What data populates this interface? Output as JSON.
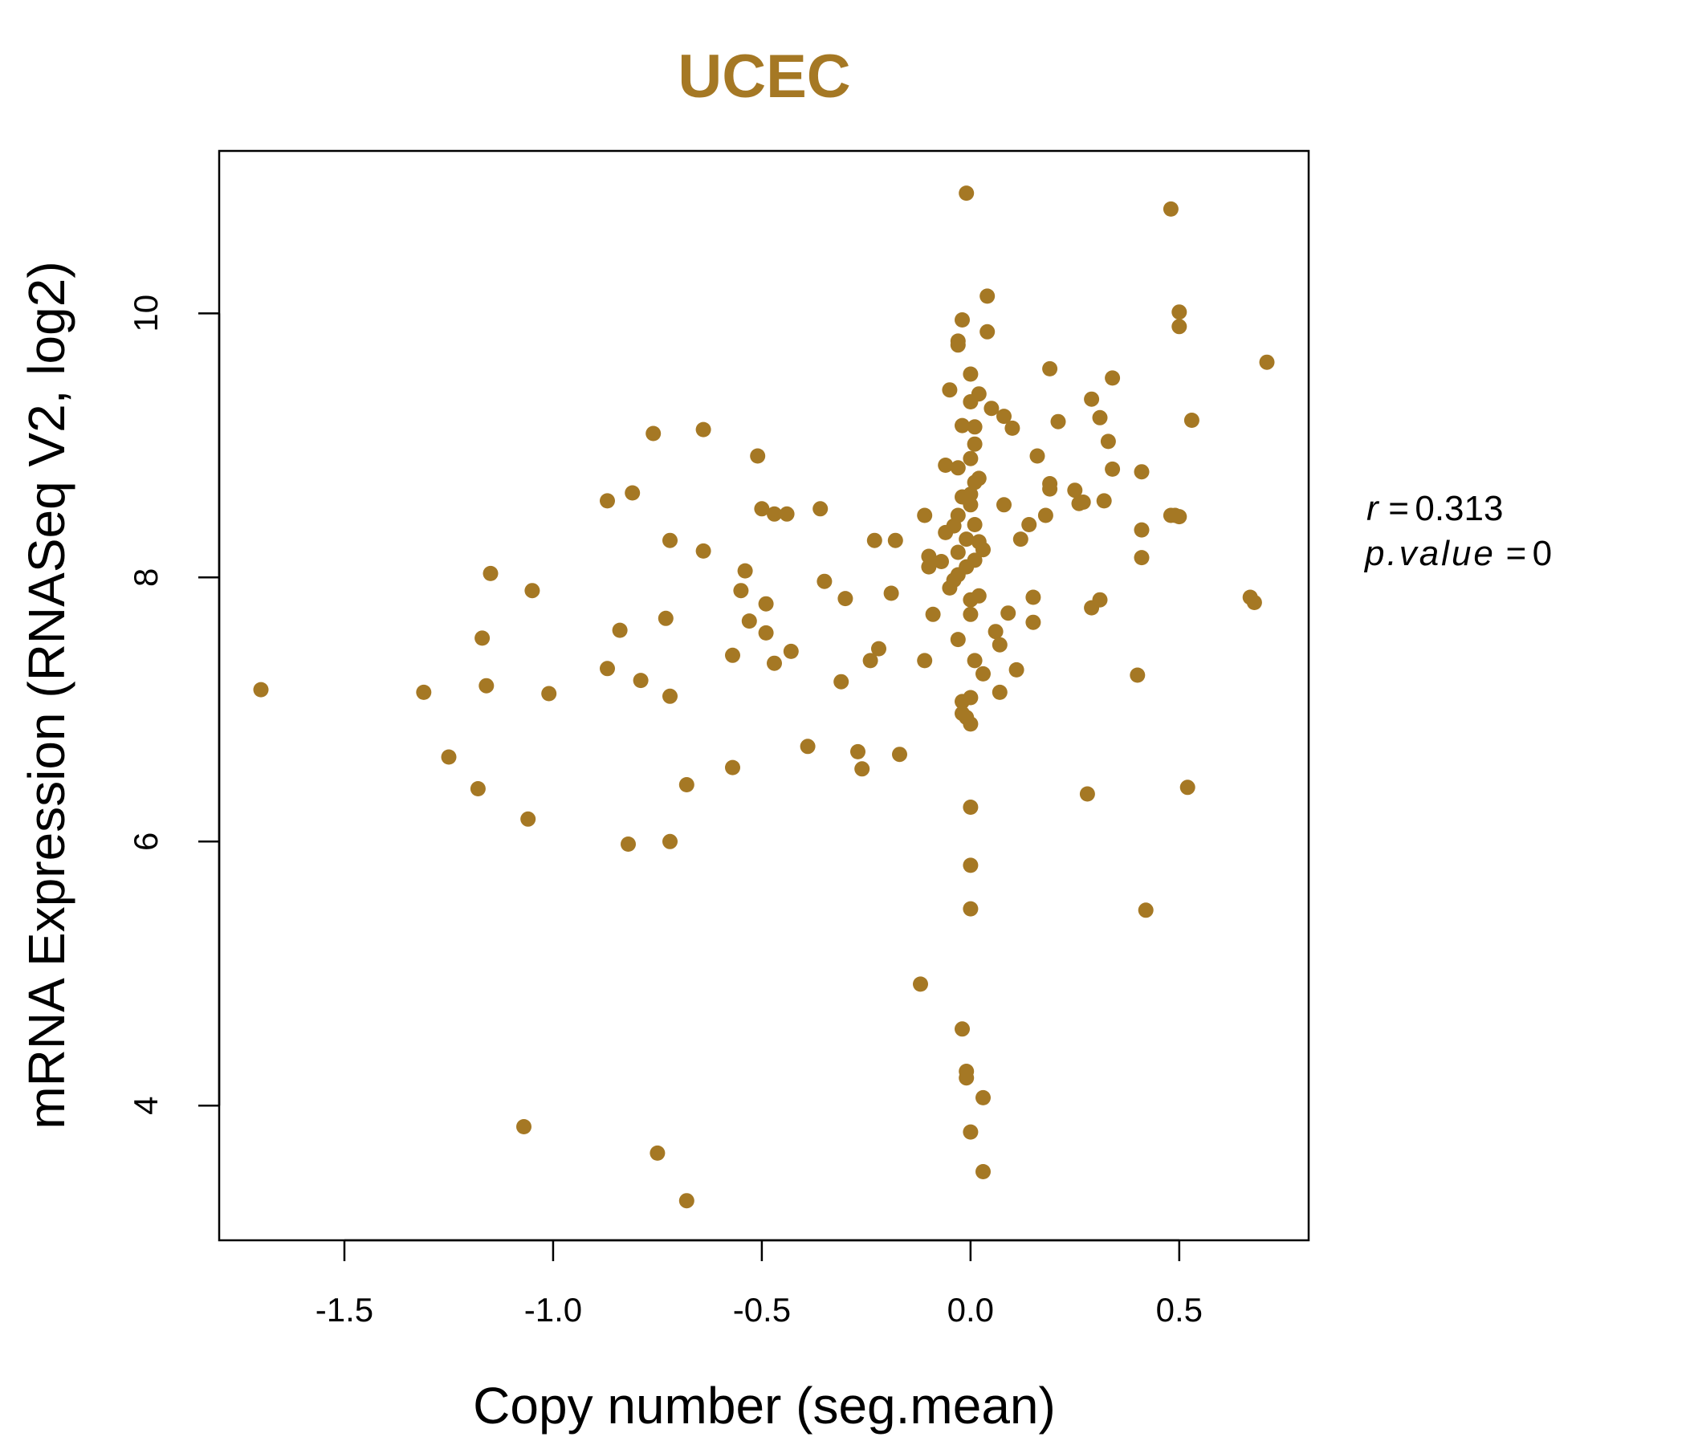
{
  "colors": {
    "point": "#a57824",
    "title": "#a57824",
    "axis": "#000000"
  },
  "chart_data": {
    "type": "scatter",
    "title": "UCEC",
    "xlabel": "Copy number (seg.mean)",
    "ylabel": "mRNA Expression (RNASeq V2, log2)",
    "xlim": [
      -1.8,
      0.81
    ],
    "ylim": [
      2.98,
      11.23
    ],
    "xticks": [
      -1.5,
      -1.0,
      -0.5,
      0.0,
      0.5
    ],
    "xtick_labels": [
      "-1.5",
      "-1.0",
      "-0.5",
      "0.0",
      "0.5"
    ],
    "yticks": [
      4,
      6,
      8,
      10
    ],
    "ytick_labels": [
      "4",
      "6",
      "8",
      "10"
    ],
    "grid": false,
    "legend": false,
    "annotations": {
      "r_label": "r",
      "r_value": "0.313",
      "p_label": "p.value",
      "p_value": "0",
      "eq": "="
    },
    "series": [
      {
        "points": [
          [
            -1.7,
            7.15
          ],
          [
            -1.31,
            7.13
          ],
          [
            -1.25,
            6.64
          ],
          [
            -1.18,
            6.4
          ],
          [
            -1.17,
            7.54
          ],
          [
            -1.16,
            7.18
          ],
          [
            -1.15,
            8.03
          ],
          [
            -1.06,
            6.17
          ],
          [
            -1.07,
            3.84
          ],
          [
            -1.05,
            7.9
          ],
          [
            -1.01,
            7.12
          ],
          [
            -0.87,
            7.31
          ],
          [
            -0.87,
            8.58
          ],
          [
            -0.84,
            7.6
          ],
          [
            -0.82,
            5.98
          ],
          [
            -0.81,
            8.64
          ],
          [
            -0.79,
            7.22
          ],
          [
            -0.76,
            9.09
          ],
          [
            -0.75,
            3.64
          ],
          [
            -0.73,
            7.69
          ],
          [
            -0.72,
            8.28
          ],
          [
            -0.72,
            7.1
          ],
          [
            -0.72,
            6.0
          ],
          [
            -0.68,
            6.43
          ],
          [
            -0.68,
            3.28
          ],
          [
            -0.64,
            9.12
          ],
          [
            -0.64,
            8.2
          ],
          [
            -0.57,
            7.41
          ],
          [
            -0.57,
            6.56
          ],
          [
            -0.54,
            8.05
          ],
          [
            -0.55,
            7.9
          ],
          [
            -0.53,
            7.67
          ],
          [
            -0.51,
            8.92
          ],
          [
            -0.5,
            8.52
          ],
          [
            -0.49,
            7.8
          ],
          [
            -0.49,
            7.58
          ],
          [
            -0.47,
            8.48
          ],
          [
            -0.47,
            7.35
          ],
          [
            -0.44,
            8.48
          ],
          [
            -0.43,
            7.44
          ],
          [
            -0.36,
            8.52
          ],
          [
            -0.35,
            7.97
          ],
          [
            -0.39,
            6.72
          ],
          [
            -0.31,
            7.21
          ],
          [
            -0.3,
            7.84
          ],
          [
            -0.27,
            6.68
          ],
          [
            -0.26,
            6.55
          ],
          [
            -0.24,
            7.37
          ],
          [
            -0.23,
            8.28
          ],
          [
            -0.22,
            7.46
          ],
          [
            -0.19,
            7.88
          ],
          [
            -0.18,
            8.28
          ],
          [
            -0.17,
            6.66
          ],
          [
            -0.12,
            4.92
          ],
          [
            -0.11,
            7.37
          ],
          [
            -0.11,
            8.47
          ],
          [
            -0.1,
            8.16
          ],
          [
            -0.1,
            8.08
          ],
          [
            -0.09,
            7.72
          ],
          [
            -0.07,
            8.12
          ],
          [
            -0.06,
            8.85
          ],
          [
            -0.06,
            8.34
          ],
          [
            -0.05,
            9.42
          ],
          [
            -0.05,
            7.92
          ],
          [
            -0.04,
            8.39
          ],
          [
            -0.04,
            7.98
          ],
          [
            -0.03,
            9.76
          ],
          [
            -0.03,
            9.79
          ],
          [
            -0.03,
            8.47
          ],
          [
            -0.03,
            8.83
          ],
          [
            -0.03,
            8.19
          ],
          [
            -0.03,
            8.02
          ],
          [
            -0.03,
            7.53
          ],
          [
            -0.02,
            8.61
          ],
          [
            -0.02,
            9.15
          ],
          [
            -0.02,
            9.95
          ],
          [
            -0.02,
            7.06
          ],
          [
            -0.02,
            6.97
          ],
          [
            -0.02,
            4.58
          ],
          [
            -0.01,
            10.91
          ],
          [
            -0.01,
            8.29
          ],
          [
            -0.01,
            8.08
          ],
          [
            -0.01,
            6.94
          ],
          [
            -0.01,
            4.26
          ],
          [
            -0.01,
            4.21
          ],
          [
            0.0,
            9.54
          ],
          [
            0.0,
            9.33
          ],
          [
            0.0,
            8.9
          ],
          [
            0.0,
            8.63
          ],
          [
            0.0,
            7.83
          ],
          [
            0.0,
            6.89
          ],
          [
            0.0,
            6.26
          ],
          [
            0.0,
            5.82
          ],
          [
            0.0,
            5.49
          ],
          [
            0.0,
            3.8
          ],
          [
            0.0,
            7.09
          ],
          [
            0.0,
            7.72
          ],
          [
            0.0,
            8.55
          ],
          [
            0.01,
            8.72
          ],
          [
            0.01,
            9.14
          ],
          [
            0.01,
            9.01
          ],
          [
            0.01,
            8.4
          ],
          [
            0.01,
            7.37
          ],
          [
            0.01,
            8.13
          ],
          [
            0.02,
            8.75
          ],
          [
            0.02,
            7.86
          ],
          [
            0.02,
            9.39
          ],
          [
            0.02,
            8.27
          ],
          [
            0.03,
            7.27
          ],
          [
            0.03,
            8.21
          ],
          [
            0.03,
            3.5
          ],
          [
            0.03,
            4.06
          ],
          [
            0.04,
            10.13
          ],
          [
            0.04,
            9.86
          ],
          [
            0.05,
            9.28
          ],
          [
            0.06,
            7.59
          ],
          [
            0.07,
            7.49
          ],
          [
            0.07,
            7.13
          ],
          [
            0.08,
            9.22
          ],
          [
            0.09,
            7.73
          ],
          [
            0.08,
            8.55
          ],
          [
            0.1,
            9.13
          ],
          [
            0.11,
            7.3
          ],
          [
            0.12,
            8.29
          ],
          [
            0.14,
            8.4
          ],
          [
            0.15,
            7.66
          ],
          [
            0.15,
            7.85
          ],
          [
            0.16,
            8.92
          ],
          [
            0.18,
            8.47
          ],
          [
            0.19,
            8.67
          ],
          [
            0.19,
            8.71
          ],
          [
            0.19,
            9.58
          ],
          [
            0.21,
            9.18
          ],
          [
            0.25,
            8.66
          ],
          [
            0.26,
            8.56
          ],
          [
            0.27,
            8.57
          ],
          [
            0.28,
            6.36
          ],
          [
            0.29,
            9.35
          ],
          [
            0.29,
            7.77
          ],
          [
            0.31,
            9.21
          ],
          [
            0.31,
            7.83
          ],
          [
            0.32,
            8.58
          ],
          [
            0.33,
            9.03
          ],
          [
            0.34,
            9.51
          ],
          [
            0.34,
            8.82
          ],
          [
            0.4,
            7.26
          ],
          [
            0.41,
            8.15
          ],
          [
            0.41,
            8.36
          ],
          [
            0.41,
            8.8
          ],
          [
            0.42,
            5.48
          ],
          [
            0.48,
            10.79
          ],
          [
            0.48,
            8.47
          ],
          [
            0.49,
            8.47
          ],
          [
            0.5,
            10.01
          ],
          [
            0.5,
            8.46
          ],
          [
            0.5,
            9.9
          ],
          [
            0.52,
            6.41
          ],
          [
            0.53,
            9.19
          ],
          [
            0.67,
            7.85
          ],
          [
            0.68,
            7.81
          ],
          [
            0.71,
            9.63
          ]
        ]
      }
    ]
  }
}
